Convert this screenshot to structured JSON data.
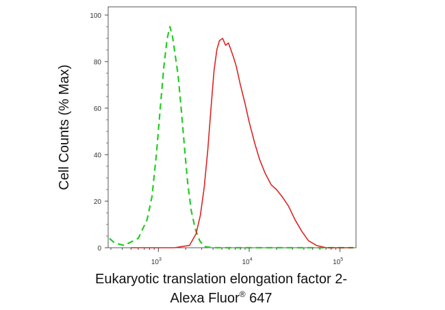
{
  "chart_data": {
    "type": "line",
    "title": "",
    "xlabel_line1": "Eukaryotic translation elongation factor 2-",
    "xlabel_line2_prefix": "Alexa Fluor",
    "xlabel_line2_sup": "®",
    "xlabel_line2_suffix": " 647",
    "ylabel": "Cell Counts (% Max)",
    "x_scale": "log",
    "xlim": [
      280,
      150000
    ],
    "ylim": [
      0,
      100
    ],
    "grid": false,
    "y_ticks": [
      "0",
      "20",
      "40",
      "60",
      "80",
      "100"
    ],
    "x_ticks": [
      {
        "base": "10",
        "exp": "3",
        "value": 1000
      },
      {
        "base": "10",
        "exp": "4",
        "value": 10000
      },
      {
        "base": "10",
        "exp": "5",
        "value": 100000
      }
    ],
    "series": [
      {
        "color": "#22cc22",
        "dash": true,
        "points": [
          [
            290,
            4
          ],
          [
            330,
            2
          ],
          [
            420,
            1
          ],
          [
            600,
            4
          ],
          [
            750,
            12
          ],
          [
            850,
            22
          ],
          [
            950,
            40
          ],
          [
            1050,
            60
          ],
          [
            1150,
            78
          ],
          [
            1250,
            90
          ],
          [
            1340,
            95
          ],
          [
            1430,
            91
          ],
          [
            1530,
            83
          ],
          [
            1650,
            74
          ],
          [
            1800,
            58
          ],
          [
            1950,
            42
          ],
          [
            2100,
            28
          ],
          [
            2300,
            16
          ],
          [
            2550,
            8
          ],
          [
            2850,
            3
          ],
          [
            3200,
            0.5
          ],
          [
            4000,
            0
          ],
          [
            10000,
            0
          ],
          [
            100000,
            0
          ],
          [
            140000,
            0
          ]
        ]
      },
      {
        "color": "#dd2222",
        "dash": false,
        "points": [
          [
            500,
            0
          ],
          [
            1500,
            0
          ],
          [
            2200,
            1
          ],
          [
            2600,
            6
          ],
          [
            2900,
            14
          ],
          [
            3200,
            26
          ],
          [
            3500,
            42
          ],
          [
            3800,
            60
          ],
          [
            4100,
            76
          ],
          [
            4400,
            85
          ],
          [
            4700,
            89
          ],
          [
            5100,
            90
          ],
          [
            5500,
            87
          ],
          [
            5900,
            88
          ],
          [
            6300,
            85
          ],
          [
            6700,
            82
          ],
          [
            7200,
            78
          ],
          [
            8000,
            70
          ],
          [
            9000,
            62
          ],
          [
            10000,
            54
          ],
          [
            11500,
            45
          ],
          [
            13000,
            38
          ],
          [
            15000,
            32
          ],
          [
            17500,
            27
          ],
          [
            20000,
            25
          ],
          [
            23000,
            22
          ],
          [
            27000,
            18
          ],
          [
            32000,
            12
          ],
          [
            38000,
            7
          ],
          [
            45000,
            3
          ],
          [
            55000,
            1
          ],
          [
            70000,
            0
          ],
          [
            140000,
            0
          ]
        ]
      }
    ]
  }
}
